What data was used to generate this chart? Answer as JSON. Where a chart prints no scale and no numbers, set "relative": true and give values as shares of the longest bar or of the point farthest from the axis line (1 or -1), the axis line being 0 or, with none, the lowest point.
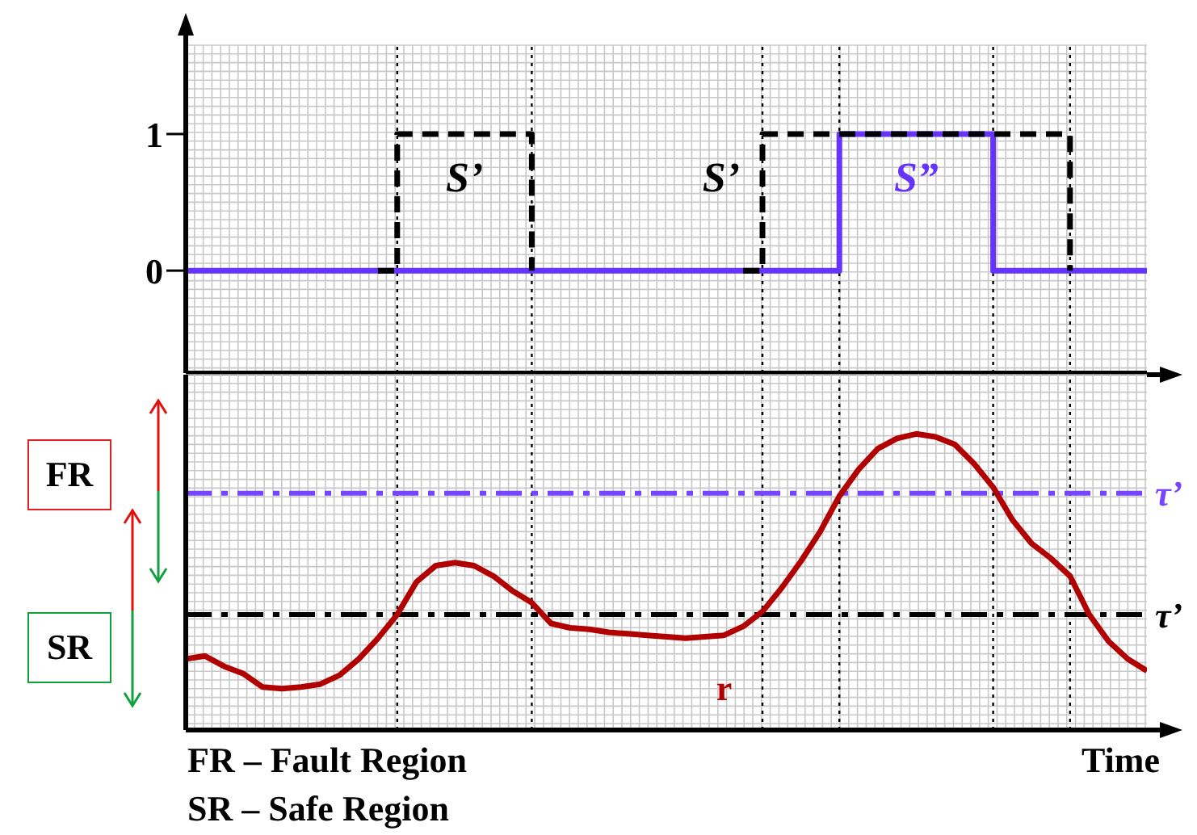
{
  "chart_data": [
    {
      "type": "step",
      "ylim": [
        -0.75,
        1.65
      ],
      "yticks": [
        0,
        1
      ],
      "tick_labels": "y",
      "grid": true,
      "marker": "none",
      "categories": [
        null,
        null,
        null,
        null,
        null,
        null,
        null,
        null,
        null,
        null,
        null,
        null,
        null,
        null,
        null,
        null,
        null,
        null,
        null,
        null,
        null,
        null,
        null,
        null,
        null,
        null,
        null,
        null,
        null,
        null,
        null,
        null,
        null,
        null,
        null,
        null,
        null,
        null,
        null,
        null,
        null,
        null,
        null,
        null,
        null,
        null,
        null,
        null,
        null,
        null,
        null
      ],
      "series": [
        {
          "name": "S’",
          "color": "#000000",
          "line_style": "dashed",
          "values": [
            null,
            null,
            null,
            null,
            null,
            null,
            null,
            null,
            null,
            null,
            0,
            1,
            1,
            1,
            1,
            1,
            1,
            1,
            0,
            null,
            null,
            null,
            null,
            null,
            null,
            null,
            null,
            null,
            null,
            null,
            null,
            null,
            null,
            null,
            null,
            null,
            null,
            null,
            null,
            null,
            null,
            null,
            null,
            null,
            null,
            null,
            null,
            null,
            null,
            null,
            null
          ]
        },
        {
          "name": "S’",
          "color": "#000000",
          "line_style": "dashed",
          "values": [
            null,
            null,
            null,
            null,
            null,
            null,
            null,
            null,
            null,
            null,
            null,
            null,
            null,
            null,
            null,
            null,
            null,
            null,
            null,
            null,
            null,
            null,
            null,
            null,
            null,
            null,
            null,
            null,
            null,
            0,
            1,
            1,
            1,
            1,
            1,
            1,
            1,
            1,
            1,
            1,
            1,
            1,
            1,
            1,
            1,
            1,
            0,
            null,
            null,
            null,
            null
          ]
        },
        {
          "name": "S”",
          "color": "#6633ff",
          "line_style": "solid",
          "values": [
            0,
            0,
            0,
            0,
            0,
            0,
            0,
            0,
            0,
            0,
            0,
            0,
            0,
            0,
            0,
            0,
            0,
            0,
            0,
            0,
            0,
            0,
            0,
            0,
            0,
            0,
            0,
            0,
            0,
            0,
            0,
            0,
            0,
            0,
            1,
            1,
            1,
            1,
            1,
            1,
            1,
            1,
            0,
            0,
            0,
            0,
            0,
            0,
            0,
            0,
            0
          ]
        }
      ]
    },
    {
      "type": "line",
      "relative": true,
      "tick_labels": false,
      "grid": true,
      "marker": "none",
      "xlabel": "Time",
      "categories": [
        null,
        null,
        null,
        null,
        null,
        null,
        null,
        null,
        null,
        null,
        null,
        null,
        null,
        null,
        null,
        null,
        null,
        null,
        null,
        null,
        null,
        null,
        null,
        null,
        null,
        null,
        null,
        null,
        null,
        null,
        null,
        null,
        null,
        null,
        null,
        null,
        null,
        null,
        null,
        null,
        null,
        null,
        null,
        null,
        null,
        null,
        null,
        null,
        null,
        null,
        null
      ],
      "annotations": [
        "FR",
        "SR",
        "FR – Fault Region",
        "SR – Safe Region"
      ],
      "series": [
        {
          "name": "r",
          "color": "#b00000",
          "line_style": "solid",
          "values": [
            0.24,
            0.25,
            0.215,
            0.19,
            0.145,
            0.14,
            0.145,
            0.155,
            0.185,
            0.24,
            0.31,
            0.39,
            0.5,
            0.555,
            0.565,
            0.555,
            0.52,
            0.47,
            0.43,
            0.36,
            0.345,
            0.34,
            0.33,
            0.325,
            0.32,
            0.315,
            0.31,
            0.315,
            0.32,
            0.35,
            0.4,
            0.48,
            0.57,
            0.67,
            0.79,
            0.88,
            0.95,
            0.985,
            1,
            0.99,
            0.965,
            0.9,
            0.82,
            0.71,
            0.63,
            0.58,
            0.52,
            0.39,
            0.3,
            0.24,
            0.2
          ]
        }
      ],
      "ref_lines": [
        {
          "axis": "y",
          "value": 0.8,
          "label": "τ’",
          "color": "#7744ff",
          "line_style": "dashed"
        },
        {
          "axis": "y",
          "value": 0.39,
          "label": "τ’",
          "color": "#000000",
          "line_style": "dashed"
        }
      ]
    }
  ]
}
